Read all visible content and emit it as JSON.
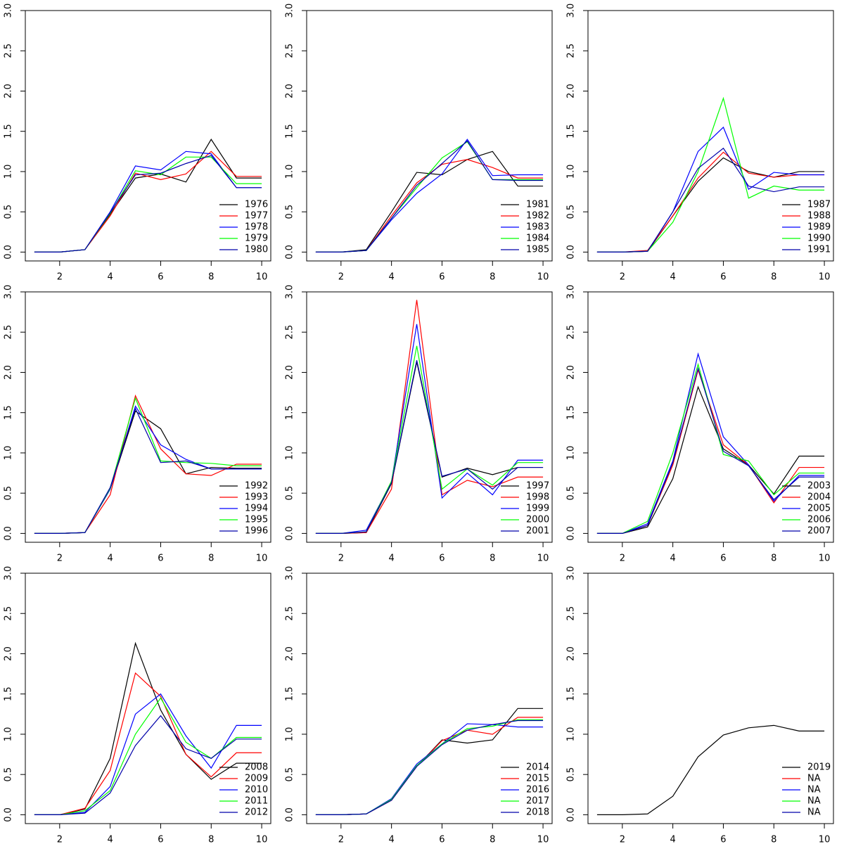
{
  "chart_data": [
    {
      "type": "line",
      "x": [
        1,
        2,
        3,
        4,
        5,
        6,
        7,
        8,
        9,
        10
      ],
      "xlim": [
        0.64,
        10.36
      ],
      "xticks": [
        2,
        4,
        6,
        8,
        10
      ],
      "ylim": [
        -0.11,
        3
      ],
      "yticks": [
        {
          "value": 0,
          "label": "0.0"
        },
        0.5,
        {
          "value": 1,
          "label": "1.0"
        },
        1.5,
        {
          "value": 2,
          "label": "2.0"
        },
        2.5,
        {
          "value": 3,
          "label": "3.0"
        }
      ],
      "legend": "bottomright",
      "series": [
        {
          "name": "1976",
          "color": "#000000",
          "values": [
            0,
            0,
            0.03,
            0.47,
            0.92,
            0.97,
            0.87,
            1.4,
            0.92,
            0.92
          ]
        },
        {
          "name": "1977",
          "color": "#ff0000",
          "values": [
            0,
            0,
            0.03,
            0.45,
            0.98,
            0.9,
            0.97,
            1.25,
            0.94,
            0.94
          ]
        },
        {
          "name": "1978",
          "color": "#0000ff",
          "values": [
            0,
            0,
            0.03,
            0.5,
            1.07,
            1.02,
            1.25,
            1.22,
            0.8,
            0.8
          ]
        },
        {
          "name": "1979",
          "color": "#00ff00",
          "values": [
            0,
            0,
            0.03,
            0.48,
            1.01,
            0.96,
            1.18,
            1.18,
            0.85,
            0.85
          ]
        },
        {
          "name": "1980",
          "color": "#0000aa",
          "values": [
            0,
            0,
            0.03,
            0.49,
            0.96,
            0.98,
            1.1,
            1.2,
            0.8,
            0.8
          ]
        }
      ]
    },
    {
      "type": "line",
      "x": [
        1,
        2,
        3,
        4,
        5,
        6,
        7,
        8,
        9,
        10
      ],
      "xlim": [
        0.64,
        10.36
      ],
      "xticks": [
        2,
        4,
        6,
        8,
        10
      ],
      "ylim": [
        -0.11,
        3
      ],
      "yticks": [
        {
          "value": 0,
          "label": "0.0"
        },
        0.5,
        {
          "value": 1,
          "label": "1.0"
        },
        1.5,
        {
          "value": 2,
          "label": "2.0"
        },
        2.5,
        {
          "value": 3,
          "label": "3.0"
        }
      ],
      "legend": "bottomright",
      "series": [
        {
          "name": "1981",
          "color": "#000000",
          "values": [
            0,
            0,
            0.03,
            0.5,
            0.99,
            0.96,
            1.15,
            1.25,
            0.82,
            0.82
          ]
        },
        {
          "name": "1982",
          "color": "#ff0000",
          "values": [
            0,
            0,
            0.02,
            0.45,
            0.86,
            1.09,
            1.15,
            1.05,
            0.92,
            0.92
          ]
        },
        {
          "name": "1983",
          "color": "#0000ff",
          "values": [
            0,
            0,
            0.02,
            0.4,
            0.73,
            0.97,
            1.4,
            0.95,
            0.96,
            0.96
          ]
        },
        {
          "name": "1984",
          "color": "#00ff00",
          "values": [
            0,
            0,
            0.02,
            0.42,
            0.8,
            1.17,
            1.37,
            0.9,
            0.9,
            0.9
          ]
        },
        {
          "name": "1985",
          "color": "#0000aa",
          "values": [
            0,
            0,
            0.02,
            0.42,
            0.83,
            1.1,
            1.38,
            0.9,
            0.89,
            0.89
          ]
        }
      ]
    },
    {
      "type": "line",
      "x": [
        1,
        2,
        3,
        4,
        5,
        6,
        7,
        8,
        9,
        10
      ],
      "xlim": [
        0.64,
        10.36
      ],
      "xticks": [
        2,
        4,
        6,
        8,
        10
      ],
      "ylim": [
        -0.11,
        3
      ],
      "yticks": [
        {
          "value": 0,
          "label": "0.0"
        },
        0.5,
        {
          "value": 1,
          "label": "1.0"
        },
        1.5,
        {
          "value": 2,
          "label": "2.0"
        },
        2.5,
        {
          "value": 3,
          "label": "3.0"
        }
      ],
      "legend": "bottomright",
      "series": [
        {
          "name": "1987",
          "color": "#000000",
          "values": [
            0,
            0,
            0.01,
            0.45,
            0.88,
            1.17,
            1.0,
            0.93,
            1.0,
            1.0
          ]
        },
        {
          "name": "1988",
          "color": "#ff0000",
          "values": [
            0,
            0,
            0.02,
            0.45,
            0.92,
            1.24,
            0.98,
            0.93,
            0.96,
            0.96
          ]
        },
        {
          "name": "1989",
          "color": "#0000ff",
          "values": [
            0,
            0,
            0.01,
            0.5,
            1.25,
            1.55,
            0.78,
            0.99,
            0.96,
            0.96
          ]
        },
        {
          "name": "1990",
          "color": "#00ff00",
          "values": [
            0,
            0,
            0.01,
            0.37,
            1.0,
            1.91,
            0.67,
            0.82,
            0.77,
            0.77
          ]
        },
        {
          "name": "1991",
          "color": "#0000aa",
          "values": [
            0,
            0,
            0.01,
            0.5,
            1.04,
            1.29,
            0.82,
            0.75,
            0.81,
            0.81
          ]
        }
      ]
    },
    {
      "type": "line",
      "x": [
        1,
        2,
        3,
        4,
        5,
        6,
        7,
        8,
        9,
        10
      ],
      "xlim": [
        0.64,
        10.36
      ],
      "xticks": [
        2,
        4,
        6,
        8,
        10
      ],
      "ylim": [
        -0.11,
        3
      ],
      "yticks": [
        {
          "value": 0,
          "label": "0.0"
        },
        0.5,
        {
          "value": 1,
          "label": "1.0"
        },
        1.5,
        {
          "value": 2,
          "label": "2.0"
        },
        2.5,
        {
          "value": 3,
          "label": "3.0"
        }
      ],
      "legend": "bottomright",
      "series": [
        {
          "name": "1992",
          "color": "#000000",
          "values": [
            0,
            0,
            0.01,
            0.55,
            1.52,
            1.3,
            0.74,
            0.82,
            0.81,
            0.81
          ]
        },
        {
          "name": "1993",
          "color": "#ff0000",
          "values": [
            0,
            0,
            0.01,
            0.48,
            1.71,
            1.05,
            0.74,
            0.72,
            0.86,
            0.86
          ]
        },
        {
          "name": "1994",
          "color": "#0000ff",
          "values": [
            0,
            0,
            0.01,
            0.55,
            1.58,
            1.1,
            0.92,
            0.8,
            0.8,
            0.8
          ]
        },
        {
          "name": "1995",
          "color": "#00ff00",
          "values": [
            0,
            0,
            0.01,
            0.56,
            1.68,
            0.9,
            0.88,
            0.87,
            0.84,
            0.84
          ]
        },
        {
          "name": "1996",
          "color": "#0000aa",
          "values": [
            0,
            0,
            0.01,
            0.57,
            1.55,
            0.88,
            0.9,
            0.8,
            0.8,
            0.8
          ]
        }
      ]
    },
    {
      "type": "line",
      "x": [
        1,
        2,
        3,
        4,
        5,
        6,
        7,
        8,
        9,
        10
      ],
      "xlim": [
        0.64,
        10.36
      ],
      "xticks": [
        2,
        4,
        6,
        8,
        10
      ],
      "ylim": [
        -0.11,
        3
      ],
      "yticks": [
        {
          "value": 0,
          "label": "0.0"
        },
        0.5,
        {
          "value": 1,
          "label": "1.0"
        },
        1.5,
        {
          "value": 2,
          "label": "2.0"
        },
        2.5,
        {
          "value": 3,
          "label": "3.0"
        }
      ],
      "legend": "bottomright",
      "series": [
        {
          "name": "1997",
          "color": "#000000",
          "values": [
            0,
            0,
            0.01,
            0.62,
            2.13,
            0.7,
            0.81,
            0.73,
            0.82,
            0.82
          ]
        },
        {
          "name": "1998",
          "color": "#ff0000",
          "values": [
            0,
            0,
            0.01,
            0.55,
            2.9,
            0.48,
            0.66,
            0.58,
            0.7,
            0.7
          ]
        },
        {
          "name": "1999",
          "color": "#0000ff",
          "values": [
            0,
            0,
            0.04,
            0.64,
            2.6,
            0.44,
            0.75,
            0.48,
            0.91,
            0.91
          ]
        },
        {
          "name": "2000",
          "color": "#00ff00",
          "values": [
            0,
            0,
            0.02,
            0.65,
            2.33,
            0.55,
            0.8,
            0.6,
            0.88,
            0.88
          ]
        },
        {
          "name": "2001",
          "color": "#0000aa",
          "values": [
            0,
            0,
            0.02,
            0.63,
            2.15,
            0.71,
            0.8,
            0.55,
            0.82,
            0.82
          ]
        }
      ]
    },
    {
      "type": "line",
      "x": [
        1,
        2,
        3,
        4,
        5,
        6,
        7,
        8,
        9,
        10
      ],
      "xlim": [
        0.64,
        10.36
      ],
      "xticks": [
        2,
        4,
        6,
        8,
        10
      ],
      "ylim": [
        -0.11,
        3
      ],
      "yticks": [
        {
          "value": 0,
          "label": "0.0"
        },
        0.5,
        {
          "value": 1,
          "label": "1.0"
        },
        1.5,
        {
          "value": 2,
          "label": "2.0"
        },
        2.5,
        {
          "value": 3,
          "label": "3.0"
        }
      ],
      "legend": "bottomright",
      "series": [
        {
          "name": "2003",
          "color": "#000000",
          "values": [
            0,
            0,
            0.08,
            0.68,
            1.82,
            1.05,
            0.85,
            0.49,
            0.96,
            0.96
          ]
        },
        {
          "name": "2004",
          "color": "#ff0000",
          "values": [
            0,
            0,
            0.1,
            0.85,
            2.03,
            1.1,
            0.85,
            0.38,
            0.82,
            0.82
          ]
        },
        {
          "name": "2005",
          "color": "#0000ff",
          "values": [
            0,
            0,
            0.12,
            0.9,
            2.23,
            1.2,
            0.85,
            0.4,
            0.72,
            0.72
          ]
        },
        {
          "name": "2006",
          "color": "#00ff00",
          "values": [
            0,
            0,
            0.15,
            1.0,
            2.1,
            0.98,
            0.9,
            0.48,
            0.75,
            0.75
          ]
        },
        {
          "name": "2007",
          "color": "#0000aa",
          "values": [
            0,
            0,
            0.1,
            0.88,
            2.05,
            1.02,
            0.84,
            0.42,
            0.7,
            0.7
          ]
        }
      ]
    },
    {
      "type": "line",
      "x": [
        1,
        2,
        3,
        4,
        5,
        6,
        7,
        8,
        9,
        10
      ],
      "xlim": [
        0.64,
        10.36
      ],
      "xticks": [
        2,
        4,
        6,
        8,
        10
      ],
      "ylim": [
        -0.11,
        3
      ],
      "yticks": [
        {
          "value": 0,
          "label": "0.0"
        },
        0.5,
        {
          "value": 1,
          "label": "1.0"
        },
        1.5,
        {
          "value": 2,
          "label": "2.0"
        },
        2.5,
        {
          "value": 3,
          "label": "3.0"
        }
      ],
      "legend": "bottomright",
      "series": [
        {
          "name": "2008",
          "color": "#000000",
          "values": [
            0,
            0,
            0.07,
            0.7,
            2.13,
            1.3,
            0.75,
            0.44,
            0.64,
            0.64
          ]
        },
        {
          "name": "2009",
          "color": "#ff0000",
          "values": [
            0,
            0,
            0.08,
            0.55,
            1.76,
            1.47,
            0.75,
            0.47,
            0.77,
            0.77
          ]
        },
        {
          "name": "2010",
          "color": "#0000ff",
          "values": [
            0,
            0,
            0.03,
            0.35,
            1.25,
            1.5,
            0.98,
            0.58,
            1.11,
            1.11
          ]
        },
        {
          "name": "2011",
          "color": "#00ff00",
          "values": [
            0,
            0,
            0.05,
            0.3,
            1.0,
            1.45,
            0.9,
            0.7,
            0.96,
            0.96
          ]
        },
        {
          "name": "2012",
          "color": "#0000aa",
          "values": [
            0,
            0,
            0.02,
            0.27,
            0.86,
            1.23,
            0.82,
            0.7,
            0.94,
            0.94
          ]
        }
      ]
    },
    {
      "type": "line",
      "x": [
        1,
        2,
        3,
        4,
        5,
        6,
        7,
        8,
        9,
        10
      ],
      "xlim": [
        0.64,
        10.36
      ],
      "xticks": [
        2,
        4,
        6,
        8,
        10
      ],
      "ylim": [
        -0.11,
        3
      ],
      "yticks": [
        {
          "value": 0,
          "label": "0.0"
        },
        0.5,
        {
          "value": 1,
          "label": "1.0"
        },
        1.5,
        {
          "value": 2,
          "label": "2.0"
        },
        2.5,
        {
          "value": 3,
          "label": "3.0"
        }
      ],
      "legend": "bottomright",
      "series": [
        {
          "name": "2014",
          "color": "#000000",
          "values": [
            0,
            0,
            0.01,
            0.18,
            0.6,
            0.93,
            0.89,
            0.93,
            1.32,
            1.32
          ]
        },
        {
          "name": "2015",
          "color": "#ff0000",
          "values": [
            0,
            0,
            0.01,
            0.18,
            0.6,
            0.92,
            1.05,
            1.0,
            1.21,
            1.21
          ]
        },
        {
          "name": "2016",
          "color": "#0000ff",
          "values": [
            0,
            0,
            0.01,
            0.2,
            0.63,
            0.88,
            1.13,
            1.12,
            1.09,
            1.09
          ]
        },
        {
          "name": "2017",
          "color": "#00ff00",
          "values": [
            0,
            0,
            0.01,
            0.19,
            0.61,
            0.88,
            1.07,
            1.1,
            1.18,
            1.18
          ]
        },
        {
          "name": "2018",
          "color": "#0000aa",
          "values": [
            0,
            0,
            0.01,
            0.18,
            0.6,
            0.87,
            1.05,
            1.12,
            1.17,
            1.17
          ]
        }
      ]
    },
    {
      "type": "line",
      "x": [
        1,
        2,
        3,
        4,
        5,
        6,
        7,
        8,
        9,
        10
      ],
      "xlim": [
        0.64,
        10.36
      ],
      "xticks": [
        2,
        4,
        6,
        8,
        10
      ],
      "ylim": [
        -0.11,
        3
      ],
      "yticks": [
        {
          "value": 0,
          "label": "0.0"
        },
        0.5,
        {
          "value": 1,
          "label": "1.0"
        },
        1.5,
        {
          "value": 2,
          "label": "2.0"
        },
        2.5,
        {
          "value": 3,
          "label": "3.0"
        }
      ],
      "legend": "bottomright",
      "series": [
        {
          "name": "2019",
          "color": "#000000",
          "values": [
            0,
            0,
            0.01,
            0.23,
            0.72,
            0.99,
            1.08,
            1.11,
            1.04,
            1.04
          ]
        },
        {
          "name": "NA",
          "color": "#ff0000",
          "values": [
            null,
            null,
            null,
            null,
            null,
            null,
            null,
            null,
            null,
            null
          ]
        },
        {
          "name": "NA",
          "color": "#0000ff",
          "values": [
            null,
            null,
            null,
            null,
            null,
            null,
            null,
            null,
            null,
            null
          ]
        },
        {
          "name": "NA",
          "color": "#00ff00",
          "values": [
            null,
            null,
            null,
            null,
            null,
            null,
            null,
            null,
            null,
            null
          ]
        },
        {
          "name": "NA",
          "color": "#0000aa",
          "values": [
            null,
            null,
            null,
            null,
            null,
            null,
            null,
            null,
            null,
            null
          ]
        }
      ]
    }
  ]
}
